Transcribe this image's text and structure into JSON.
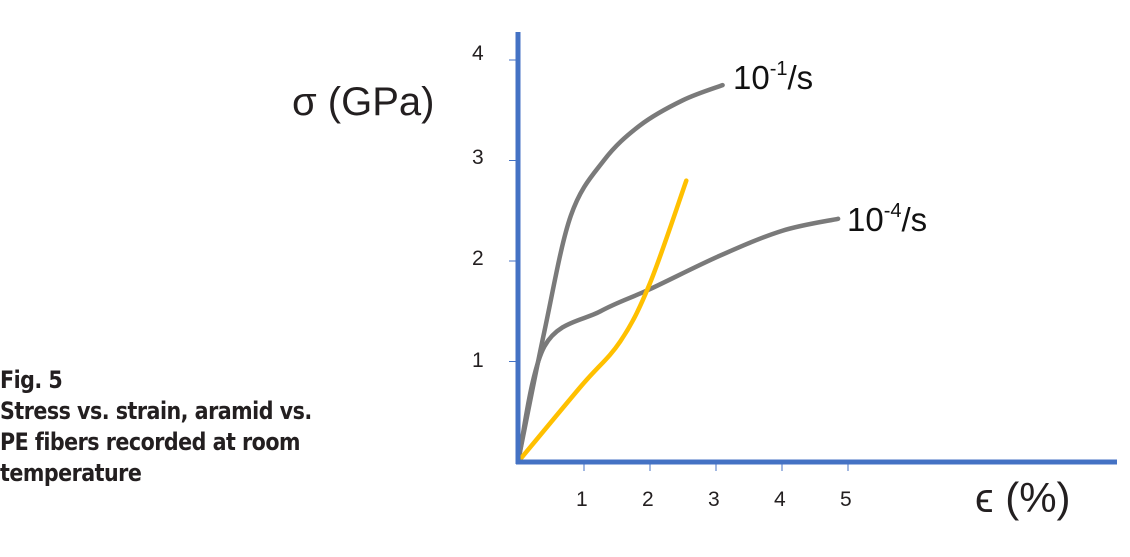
{
  "caption": {
    "figure": "Fig. 5",
    "lines": [
      "Stress vs. strain, aramid vs.",
      "PE fibers recorded at room",
      "temperature"
    ]
  },
  "colors": {
    "axis": "#4472c4",
    "gray_series": "#7a7a7a",
    "yellow_series": "#ffc000",
    "text": "#231f20"
  },
  "chart_data": {
    "type": "line",
    "title": "",
    "xlabel": "ϵ (%)",
    "ylabel": "σ (GPa)",
    "xlim": [
      0,
      9
    ],
    "ylim": [
      0,
      4.3
    ],
    "x_ticks": [
      "1",
      "2",
      "3",
      "4",
      "5"
    ],
    "y_ticks": [
      "1",
      "2",
      "3",
      "4"
    ],
    "grid": false,
    "legend": "inline labels",
    "series": [
      {
        "name": "10-1/s",
        "label_base": "10",
        "label_exp": "-1",
        "label_unit": "/s",
        "color": "#7a7a7a",
        "x": [
          0,
          0.4,
          0.8,
          1.3,
          1.85,
          2.5,
          3.1
        ],
        "y": [
          0,
          1.3,
          2.45,
          3.0,
          3.35,
          3.6,
          3.75
        ]
      },
      {
        "name": "10-4/s",
        "label_base": "10",
        "label_exp": "-4",
        "label_unit": "/s",
        "color": "#7a7a7a",
        "x": [
          0,
          0.4,
          1.25,
          2.0,
          3.05,
          4.0,
          4.85
        ],
        "y": [
          0,
          1.15,
          1.5,
          1.72,
          2.05,
          2.3,
          2.42
        ]
      },
      {
        "name": "yellow (unlabeled)",
        "color": "#ffc000",
        "x": [
          0,
          0.95,
          1.55,
          2.0,
          2.55
        ],
        "y": [
          0,
          0.75,
          1.2,
          1.78,
          2.8
        ]
      }
    ]
  }
}
